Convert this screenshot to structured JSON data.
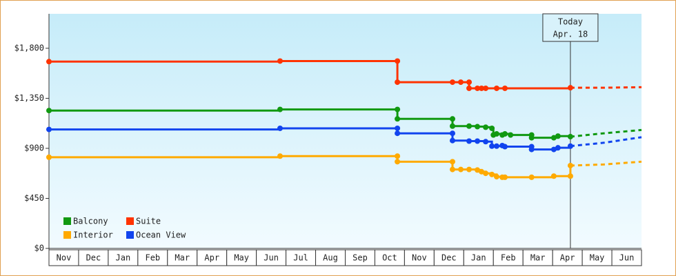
{
  "chart_data": {
    "type": "step-line",
    "xlim": [
      0,
      20
    ],
    "ylim": [
      0,
      2110
    ],
    "yticks": [
      {
        "value": 0,
        "label": "$0"
      },
      {
        "value": 450,
        "label": "$450"
      },
      {
        "value": 900,
        "label": "$900"
      },
      {
        "value": 1350,
        "label": "$1,350"
      },
      {
        "value": 1800,
        "label": "$1,800"
      }
    ],
    "xticks": [
      {
        "value": 0.5,
        "label": "Nov"
      },
      {
        "value": 1.5,
        "label": "Dec"
      },
      {
        "value": 2.5,
        "label": "Jan"
      },
      {
        "value": 3.5,
        "label": "Feb"
      },
      {
        "value": 4.5,
        "label": "Mar"
      },
      {
        "value": 5.5,
        "label": "Apr"
      },
      {
        "value": 6.5,
        "label": "May"
      },
      {
        "value": 7.5,
        "label": "Jun"
      },
      {
        "value": 8.5,
        "label": "Jul"
      },
      {
        "value": 9.5,
        "label": "Aug"
      },
      {
        "value": 10.5,
        "label": "Sep"
      },
      {
        "value": 11.5,
        "label": "Oct"
      },
      {
        "value": 12.5,
        "label": "Nov"
      },
      {
        "value": 13.5,
        "label": "Dec"
      },
      {
        "value": 14.5,
        "label": "Jan"
      },
      {
        "value": 15.5,
        "label": "Feb"
      },
      {
        "value": 16.5,
        "label": "Mar"
      },
      {
        "value": 17.5,
        "label": "Apr"
      },
      {
        "value": 18.5,
        "label": "May"
      },
      {
        "value": 19.5,
        "label": "Jun"
      }
    ],
    "today": {
      "x": 17.6,
      "label": [
        "Today",
        "Apr. 18"
      ]
    },
    "series": [
      {
        "name": "Balcony",
        "color": "#119911",
        "x": [
          0,
          7.8,
          11.76,
          11.76,
          13.62,
          13.62,
          14.18,
          14.46,
          14.74,
          14.95,
          15.0,
          15.11,
          15.3,
          15.39,
          15.58,
          16.29,
          16.29,
          17.04,
          17.18,
          17.6
        ],
        "values": [
          1240,
          1250,
          1250,
          1165,
          1165,
          1100,
          1100,
          1095,
          1090,
          1080,
          1020,
          1030,
          1020,
          1030,
          1020,
          1020,
          995,
          995,
          1010,
          1005
        ],
        "forecast_x": [
          17.6,
          18.72,
          20
        ],
        "forecast_values": [
          1005,
          1035,
          1065
        ]
      },
      {
        "name": "Suite",
        "color": "#ff3300",
        "x": [
          0,
          7.8,
          11.76,
          11.76,
          13.62,
          13.9,
          14.18,
          14.18,
          14.46,
          14.6,
          14.74,
          15.11,
          15.39,
          17.6
        ],
        "values": [
          1680,
          1685,
          1685,
          1495,
          1495,
          1495,
          1495,
          1440,
          1440,
          1440,
          1440,
          1440,
          1440,
          1445
        ],
        "forecast_x": [
          17.6,
          18.72,
          20
        ],
        "forecast_values": [
          1445,
          1445,
          1450
        ]
      },
      {
        "name": "Interior",
        "color": "#ffaa00",
        "x": [
          0,
          7.8,
          11.76,
          11.76,
          13.62,
          13.62,
          13.9,
          14.18,
          14.46,
          14.6,
          14.74,
          14.95,
          15.11,
          15.3,
          15.39,
          16.29,
          17.04,
          17.6,
          17.6
        ],
        "values": [
          820,
          830,
          830,
          780,
          780,
          710,
          710,
          710,
          705,
          690,
          675,
          665,
          645,
          640,
          640,
          640,
          650,
          650,
          745
        ],
        "forecast_x": [
          17.6,
          18.72,
          20
        ],
        "forecast_values": [
          745,
          755,
          780
        ]
      },
      {
        "name": "Ocean View",
        "color": "#1144ee",
        "x": [
          0,
          7.8,
          11.76,
          11.76,
          13.62,
          13.62,
          14.18,
          14.46,
          14.74,
          14.95,
          15.11,
          15.3,
          15.39,
          16.29,
          16.29,
          17.04,
          17.18,
          17.6
        ],
        "values": [
          1070,
          1080,
          1080,
          1035,
          1035,
          970,
          965,
          965,
          960,
          920,
          920,
          925,
          915,
          915,
          890,
          890,
          905,
          920
        ],
        "forecast_x": [
          17.6,
          18.72,
          20
        ],
        "forecast_values": [
          920,
          950,
          1000
        ]
      }
    ]
  }
}
